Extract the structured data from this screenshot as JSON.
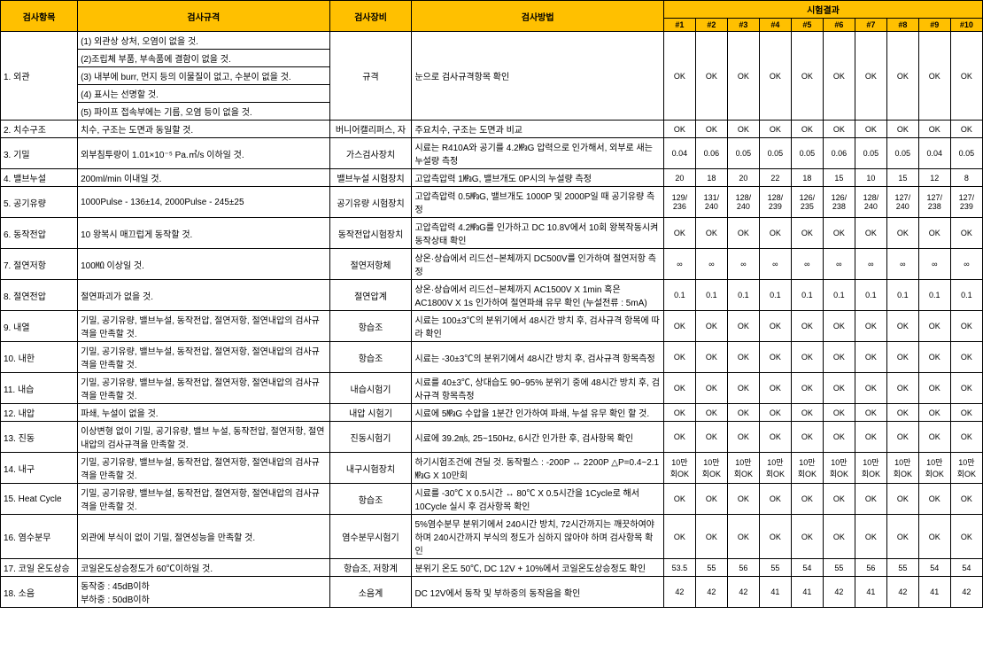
{
  "headers": {
    "item": "검사항목",
    "spec": "검사규격",
    "equip": "검사장비",
    "method": "검사방법",
    "results": "시험결과",
    "samples": [
      "#1",
      "#2",
      "#3",
      "#4",
      "#5",
      "#6",
      "#7",
      "#8",
      "#9",
      "#10"
    ]
  },
  "rows": [
    {
      "item": "1. 외관",
      "specs": [
        "(1) 외관상 상처, 오염이 없을 것.",
        "(2)조립체 부품, 부속품에 결함이 없을 것.",
        "(3) 내부에 burr, 먼지 등의 이물질이 없고, 수분이 없을 것.",
        "(4) 표시는 선명할 것.",
        "(5) 파이프 접속부에는 기름, 오염 등이 없을 것."
      ],
      "equip": "규격",
      "method": "눈으로 검사규격항목 확인",
      "results": [
        "OK",
        "OK",
        "OK",
        "OK",
        "OK",
        "OK",
        "OK",
        "OK",
        "OK",
        "OK"
      ]
    },
    {
      "item": "2. 치수구조",
      "spec": "치수, 구조는 도면과 동일할 것.",
      "equip": "버니어캘리퍼스, 자",
      "method": "주요치수, 구조는 도면과 비교",
      "results": [
        "OK",
        "OK",
        "OK",
        "OK",
        "OK",
        "OK",
        "OK",
        "OK",
        "OK",
        "OK"
      ]
    },
    {
      "item": "3. 기밀",
      "spec": "외부침투량이 1.01×10⁻⁵ Pa.㎥/s 이하일 것.",
      "equip": "가스검사장치",
      "method": "시료는 R410A와 공기를 4.2㎫G 압력으로 인가해서, 외부로 새는 누설량 측정",
      "results": [
        "0.04",
        "0.06",
        "0.05",
        "0.05",
        "0.05",
        "0.06",
        "0.05",
        "0.05",
        "0.04",
        "0.05"
      ]
    },
    {
      "item": "4. 밸브누설",
      "spec": "200ml/min 이내일 것.",
      "equip": "밸브누설 시험장치",
      "method": "고압측압력 1㎫G, 밸브개도 0P시의 누설량 측정",
      "results": [
        "20",
        "18",
        "20",
        "22",
        "18",
        "15",
        "10",
        "15",
        "12",
        "8"
      ]
    },
    {
      "item": "5. 공기유량",
      "spec": "1000Pulse - 136±14, 2000Pulse - 245±25",
      "equip": "공기유량 시험장치",
      "method": "고압측압력 0.5㎫G, 밸브개도 1000P 및 2000P일 때 공기유량 측정",
      "results": [
        "129/\n236",
        "131/\n240",
        "128/\n240",
        "128/\n239",
        "126/\n235",
        "126/\n238",
        "128/\n240",
        "127/\n240",
        "127/\n238",
        "127/\n239"
      ]
    },
    {
      "item": "6. 동작전압",
      "spec": "10 왕복시 매끄럽게 동작할 것.",
      "equip": "동작전압시험장치",
      "method": "고압측압력 4.2㎫G를 인가하고 DC 10.8V에서 10회 왕복작동시켜 동작상태 확인",
      "results": [
        "OK",
        "OK",
        "OK",
        "OK",
        "OK",
        "OK",
        "OK",
        "OK",
        "OK",
        "OK"
      ]
    },
    {
      "item": "7. 절연저항",
      "spec": "100㏁ 이상일 것.",
      "equip": "절연저항체",
      "method": "상온·상습에서 리드선~본체까지 DC500V를 인가하여 절연저항 측정",
      "results": [
        "∞",
        "∞",
        "∞",
        "∞",
        "∞",
        "∞",
        "∞",
        "∞",
        "∞",
        "∞"
      ]
    },
    {
      "item": "8. 절연전압",
      "spec": "절연파괴가 없을 것.",
      "equip": "절연압계",
      "method": "상온·상습에서 리드선~본체까지 AC1500V X 1min 혹은 AC1800V X 1s 인가하여 절연파쇄 유무 확인 (누설전류 : 5mA)",
      "results": [
        "0.1",
        "0.1",
        "0.1",
        "0.1",
        "0.1",
        "0.1",
        "0.1",
        "0.1",
        "0.1",
        "0.1"
      ]
    },
    {
      "item": "9. 내열",
      "spec": "기밀, 공기유량, 밸브누설, 동작전압, 절연저항, 절연내압의 검사규격을 만족할 것.",
      "equip": "항습조",
      "method": "시료는 100±3℃의 분위기에서 48시간 방치 후, 검사규격 항목에 따라 확인",
      "results": [
        "OK",
        "OK",
        "OK",
        "OK",
        "OK",
        "OK",
        "OK",
        "OK",
        "OK",
        "OK"
      ]
    },
    {
      "item": "10. 내한",
      "spec": "기밀, 공기유량, 밸브누설, 동작전압, 절연저항, 절연내압의 검사규격을 만족할 것.",
      "equip": "항습조",
      "method": "시료는 -30±3℃의 분위기에서 48시간 방치 후, 검사규격 항목측정",
      "results": [
        "OK",
        "OK",
        "OK",
        "OK",
        "OK",
        "OK",
        "OK",
        "OK",
        "OK",
        "OK"
      ]
    },
    {
      "item": "11. 내습",
      "spec": "기밀, 공기유량, 밸브누설, 동작전압, 절연저항, 절연내압의 검사규격을 만족할 것.",
      "equip": "내습시험기",
      "method": "시료를 40±3℃, 상대습도 90~95% 분위기 중에 48시간 방치 후, 검사규격 항목측정",
      "results": [
        "OK",
        "OK",
        "OK",
        "OK",
        "OK",
        "OK",
        "OK",
        "OK",
        "OK",
        "OK"
      ]
    },
    {
      "item": "12. 내압",
      "spec": "파쇄, 누설이 없을 것.",
      "equip": "내압 시험기",
      "method": "시료에 5㎫G 수압을 1분간 인가하여 파쇄, 누설 유무 확인 할 것.",
      "results": [
        "OK",
        "OK",
        "OK",
        "OK",
        "OK",
        "OK",
        "OK",
        "OK",
        "OK",
        "OK"
      ]
    },
    {
      "item": "13. 진동",
      "spec": "이상변형 없이 기밀, 공기유량, 밸브 누설, 동작전압, 절연저항, 절연내압의 검사규격을 만족할 것.",
      "equip": "진동시험기",
      "method": "시료에 39.2㎧, 25~150Hz, 6시간 인가한 후, 검사항목 확인",
      "results": [
        "OK",
        "OK",
        "OK",
        "OK",
        "OK",
        "OK",
        "OK",
        "OK",
        "OK",
        "OK"
      ]
    },
    {
      "item": "14. 내구",
      "spec": "기밀, 공기유량, 밸브누설, 동작전압, 절연저항, 절연내압의 검사규격을 만족할 것.",
      "equip": "내구시험장치",
      "method": "하기시험조건에 견딜 것. 동작펄스 : -200P ↔ 2200P △P=0.4~2.1㎫G X 10만회",
      "results": [
        "10만\n회OK",
        "10만\n회OK",
        "10만\n회OK",
        "10만\n회OK",
        "10만\n회OK",
        "10만\n회OK",
        "10만\n회OK",
        "10만\n회OK",
        "10만\n회OK",
        "10만\n회OK"
      ]
    },
    {
      "item": "15. Heat Cycle",
      "spec": "기밀, 공기유량, 밸브누설, 동작전압, 절연저항, 절연내압의 검사규격을 만족할 것.",
      "equip": "항습조",
      "method": "시료를 -30℃ X 0.5시간 ↔ 80℃ X 0.5시간을 1Cycle로 해서 10Cycle 실시 후 검사항목 확인",
      "results": [
        "OK",
        "OK",
        "OK",
        "OK",
        "OK",
        "OK",
        "OK",
        "OK",
        "OK",
        "OK"
      ]
    },
    {
      "item": "16. 염수분무",
      "spec": "외관에 부식이 없이 기밀, 절연성능을 만족할 것.",
      "equip": "염수분무시험기",
      "method": "5%염수분무 분위기에서 240시간 방치, 72시간까지는 깨끗하여야 하며 240시간까지 부식의 정도가 심하지 않아야 하며 검사항목 확인",
      "results": [
        "OK",
        "OK",
        "OK",
        "OK",
        "OK",
        "OK",
        "OK",
        "OK",
        "OK",
        "OK"
      ]
    },
    {
      "item": "17. 코일 온도상승",
      "spec": "코일온도상승정도가 60℃이하일 것.",
      "equip": "항습조, 저항계",
      "method": "분위기 온도 50℃, DC 12V + 10%에서 코일온도상승정도 확인",
      "results": [
        "53.5",
        "55",
        "56",
        "55",
        "54",
        "55",
        "56",
        "55",
        "54",
        "54"
      ]
    },
    {
      "item": "18. 소음",
      "spec": "동작중 : 45dB이하\n부하중 : 50dB이하",
      "equip": "소음계",
      "method": "DC 12V에서 동작 및 부하중의 동작음을 확인",
      "results": [
        "42",
        "42",
        "42",
        "41",
        "41",
        "42",
        "41",
        "42",
        "41",
        "42"
      ]
    }
  ]
}
